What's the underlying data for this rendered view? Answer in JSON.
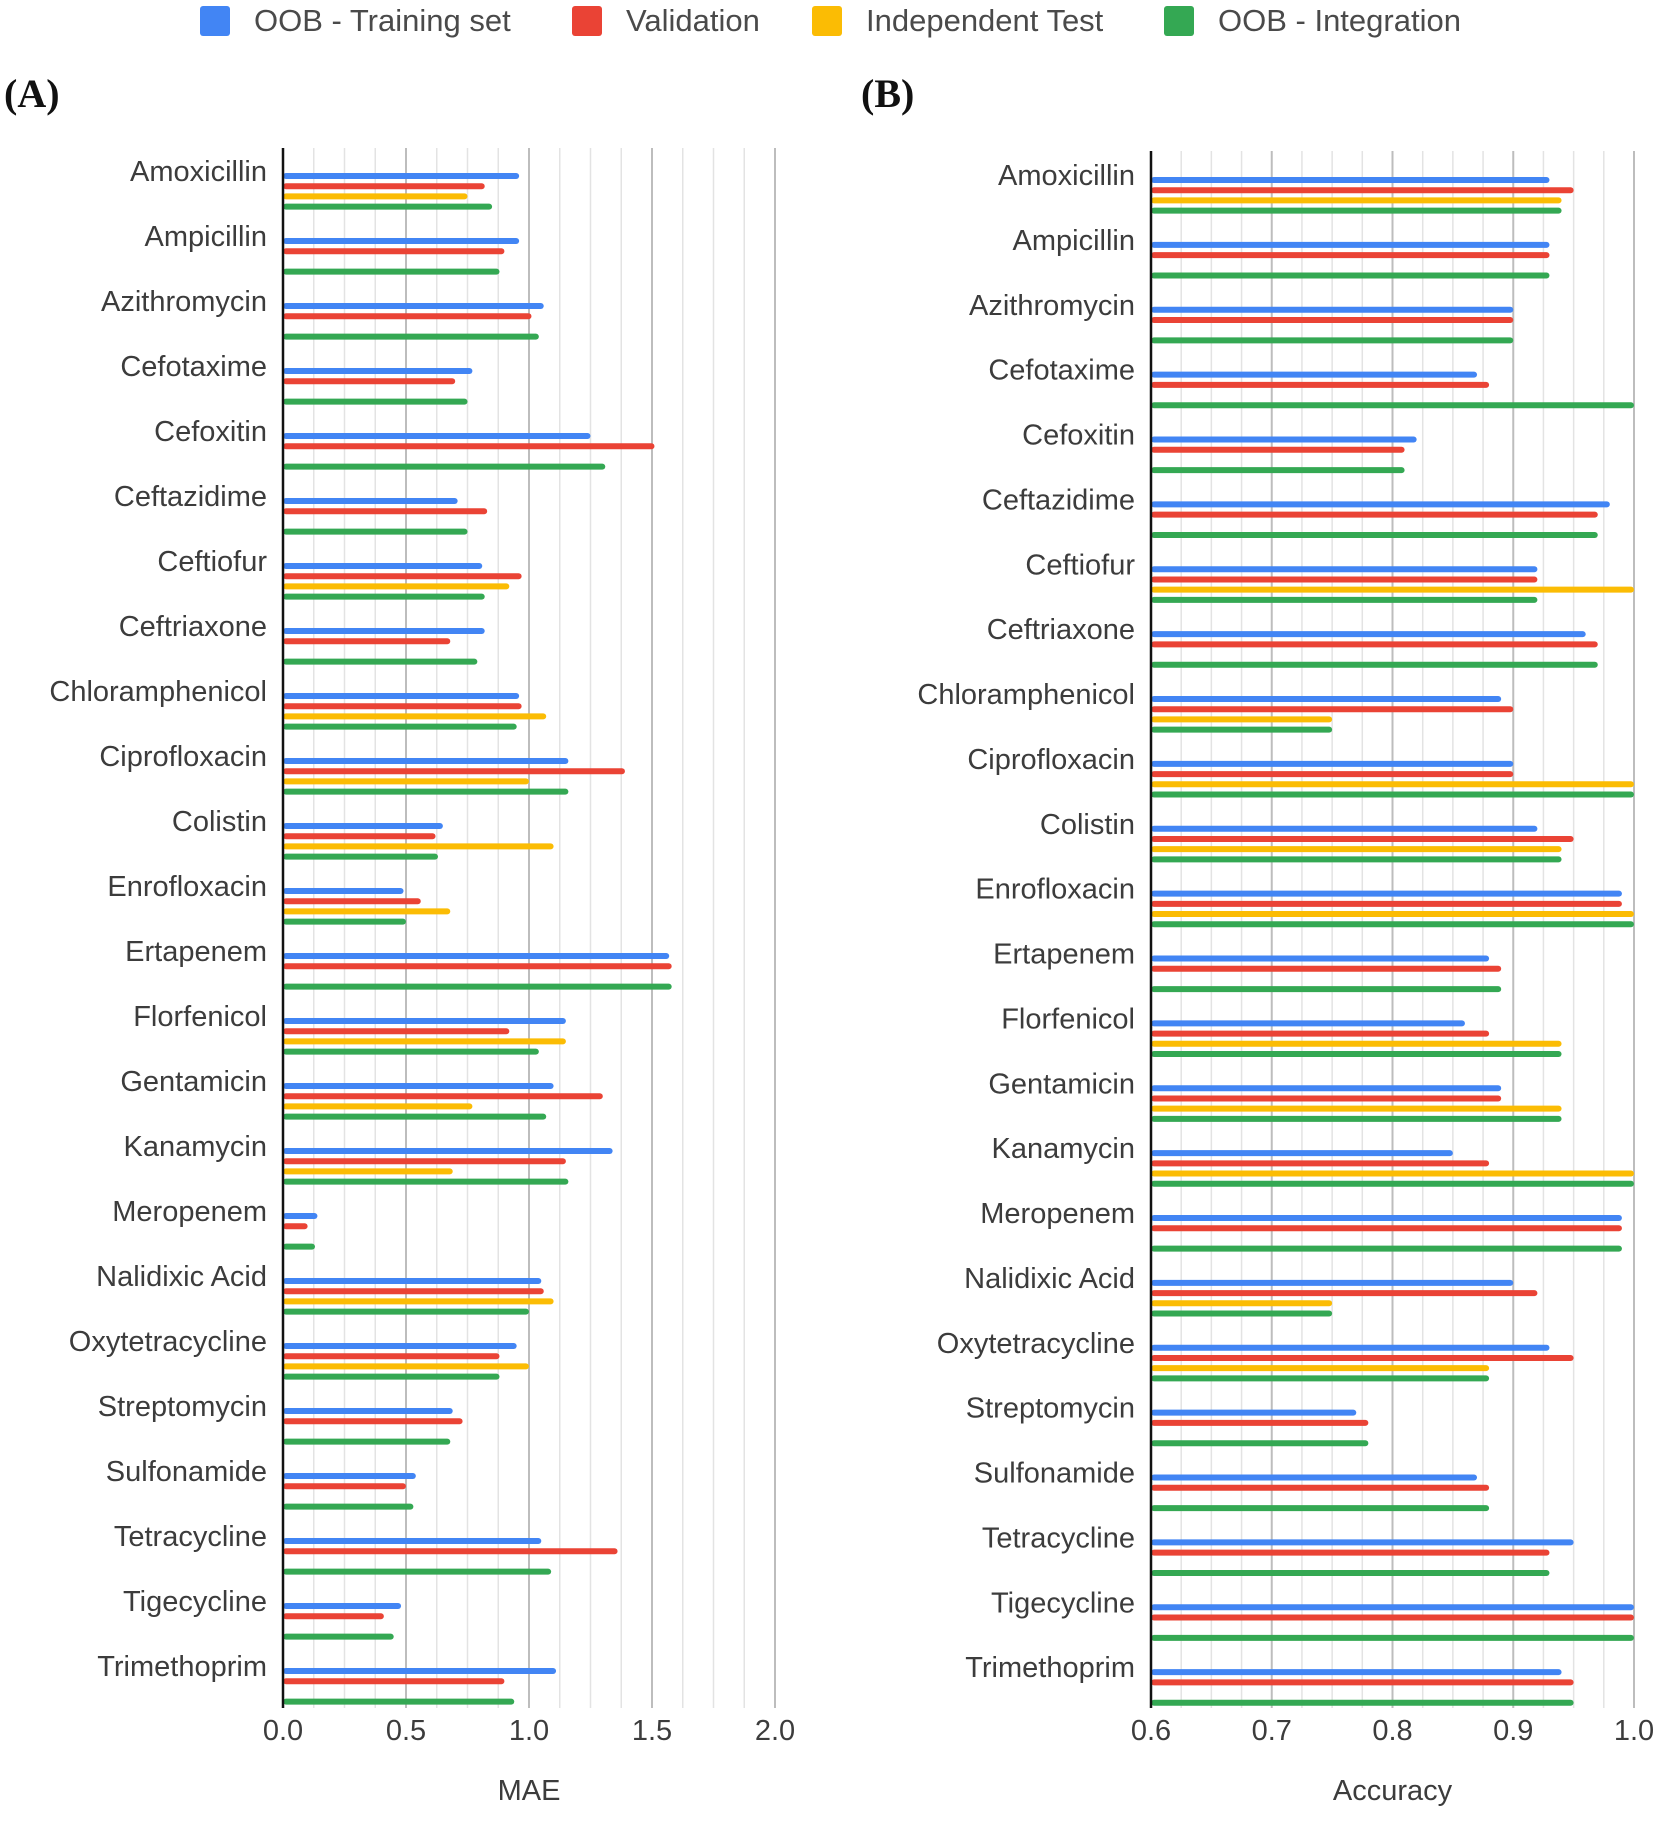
{
  "legend": [
    {
      "name": "OOB - Training set",
      "color": "#4285F4"
    },
    {
      "name": "Validation",
      "color": "#EA4335"
    },
    {
      "name": "Independent Test",
      "color": "#FBBC04"
    },
    {
      "name": "OOB - Integration",
      "color": "#34A853"
    }
  ],
  "chart_data": [
    {
      "type": "bar",
      "orientation": "horizontal",
      "panel_label": "(A)",
      "xlabel": "MAE",
      "ylabel": "",
      "xlim": [
        0,
        2.0
      ],
      "xticks": [
        "0.0",
        "0.5",
        "1.0",
        "1.5",
        "2.0"
      ],
      "grid": true,
      "legend_position": "top",
      "categories": [
        "Amoxicillin",
        "Ampicillin",
        "Azithromycin",
        "Cefotaxime",
        "Cefoxitin",
        "Ceftazidime",
        "Ceftiofur",
        "Ceftriaxone",
        "Chloramphenicol",
        "Ciprofloxacin",
        "Colistin",
        "Enrofloxacin",
        "Ertapenem",
        "Florfenicol",
        "Gentamicin",
        "Kanamycin",
        "Meropenem",
        "Nalidixic Acid",
        "Oxytetracycline",
        "Streptomycin",
        "Sulfonamide",
        "Tetracycline",
        "Tigecycline",
        "Trimethoprim"
      ],
      "series": [
        {
          "name": "OOB - Training set",
          "color": "#4285F4",
          "values": [
            0.96,
            0.96,
            1.06,
            0.77,
            1.25,
            0.71,
            0.81,
            0.82,
            0.96,
            1.16,
            0.65,
            0.49,
            1.57,
            1.15,
            1.1,
            1.34,
            0.14,
            1.05,
            0.95,
            0.69,
            0.54,
            1.05,
            0.48,
            1.11
          ]
        },
        {
          "name": "Validation",
          "color": "#EA4335",
          "values": [
            0.82,
            0.9,
            1.01,
            0.7,
            1.51,
            0.83,
            0.97,
            0.68,
            0.97,
            1.39,
            0.62,
            0.56,
            1.58,
            0.92,
            1.3,
            1.15,
            0.1,
            1.06,
            0.88,
            0.73,
            0.5,
            1.36,
            0.41,
            0.9
          ]
        },
        {
          "name": "Independent Test",
          "color": "#FBBC04",
          "values": [
            0.75,
            null,
            null,
            null,
            null,
            null,
            0.92,
            null,
            1.07,
            1.0,
            1.1,
            0.68,
            null,
            1.15,
            0.77,
            0.69,
            null,
            1.1,
            1.0,
            null,
            null,
            null,
            null,
            null
          ]
        },
        {
          "name": "OOB - Integration",
          "color": "#34A853",
          "values": [
            0.85,
            0.88,
            1.04,
            0.75,
            1.31,
            0.75,
            0.82,
            0.79,
            0.95,
            1.16,
            0.63,
            0.5,
            1.58,
            1.04,
            1.07,
            1.16,
            0.13,
            1.0,
            0.88,
            0.68,
            0.53,
            1.09,
            0.45,
            0.94
          ]
        }
      ]
    },
    {
      "type": "bar",
      "orientation": "horizontal",
      "panel_label": "(B)",
      "xlabel": "Accuracy",
      "ylabel": "",
      "xlim": [
        0.6,
        1.0
      ],
      "xticks": [
        "0.6",
        "0.7",
        "0.8",
        "0.9",
        "1.0"
      ],
      "grid": true,
      "legend_position": "top",
      "categories": [
        "Amoxicillin",
        "Ampicillin",
        "Azithromycin",
        "Cefotaxime",
        "Cefoxitin",
        "Ceftazidime",
        "Ceftiofur",
        "Ceftriaxone",
        "Chloramphenicol",
        "Ciprofloxacin",
        "Colistin",
        "Enrofloxacin",
        "Ertapenem",
        "Florfenicol",
        "Gentamicin",
        "Kanamycin",
        "Meropenem",
        "Nalidixic Acid",
        "Oxytetracycline",
        "Streptomycin",
        "Sulfonamide",
        "Tetracycline",
        "Tigecycline",
        "Trimethoprim"
      ],
      "series": [
        {
          "name": "OOB - Training set",
          "color": "#4285F4",
          "values": [
            0.93,
            0.93,
            0.9,
            0.87,
            0.82,
            0.98,
            0.92,
            0.96,
            0.89,
            0.9,
            0.92,
            0.99,
            0.88,
            0.86,
            0.89,
            0.85,
            0.99,
            0.9,
            0.93,
            0.77,
            0.87,
            0.95,
            1.0,
            0.94
          ]
        },
        {
          "name": "Validation",
          "color": "#EA4335",
          "values": [
            0.95,
            0.93,
            0.9,
            0.88,
            0.81,
            0.97,
            0.92,
            0.97,
            0.9,
            0.9,
            0.95,
            0.99,
            0.89,
            0.88,
            0.89,
            0.88,
            0.99,
            0.92,
            0.95,
            0.78,
            0.88,
            0.93,
            1.0,
            0.95
          ]
        },
        {
          "name": "Independent Test",
          "color": "#FBBC04",
          "values": [
            0.94,
            null,
            null,
            null,
            null,
            null,
            1.0,
            null,
            0.75,
            1.0,
            0.94,
            1.0,
            null,
            0.94,
            0.94,
            1.0,
            null,
            0.75,
            0.88,
            null,
            null,
            null,
            null,
            null
          ]
        },
        {
          "name": "OOB - Integration",
          "color": "#34A853",
          "values": [
            0.94,
            0.93,
            0.9,
            1.0,
            0.81,
            0.97,
            0.92,
            0.97,
            0.75,
            1.0,
            0.94,
            1.0,
            0.89,
            0.94,
            0.94,
            1.0,
            0.99,
            0.75,
            0.88,
            0.78,
            0.88,
            0.93,
            1.0,
            0.95
          ]
        }
      ]
    }
  ]
}
